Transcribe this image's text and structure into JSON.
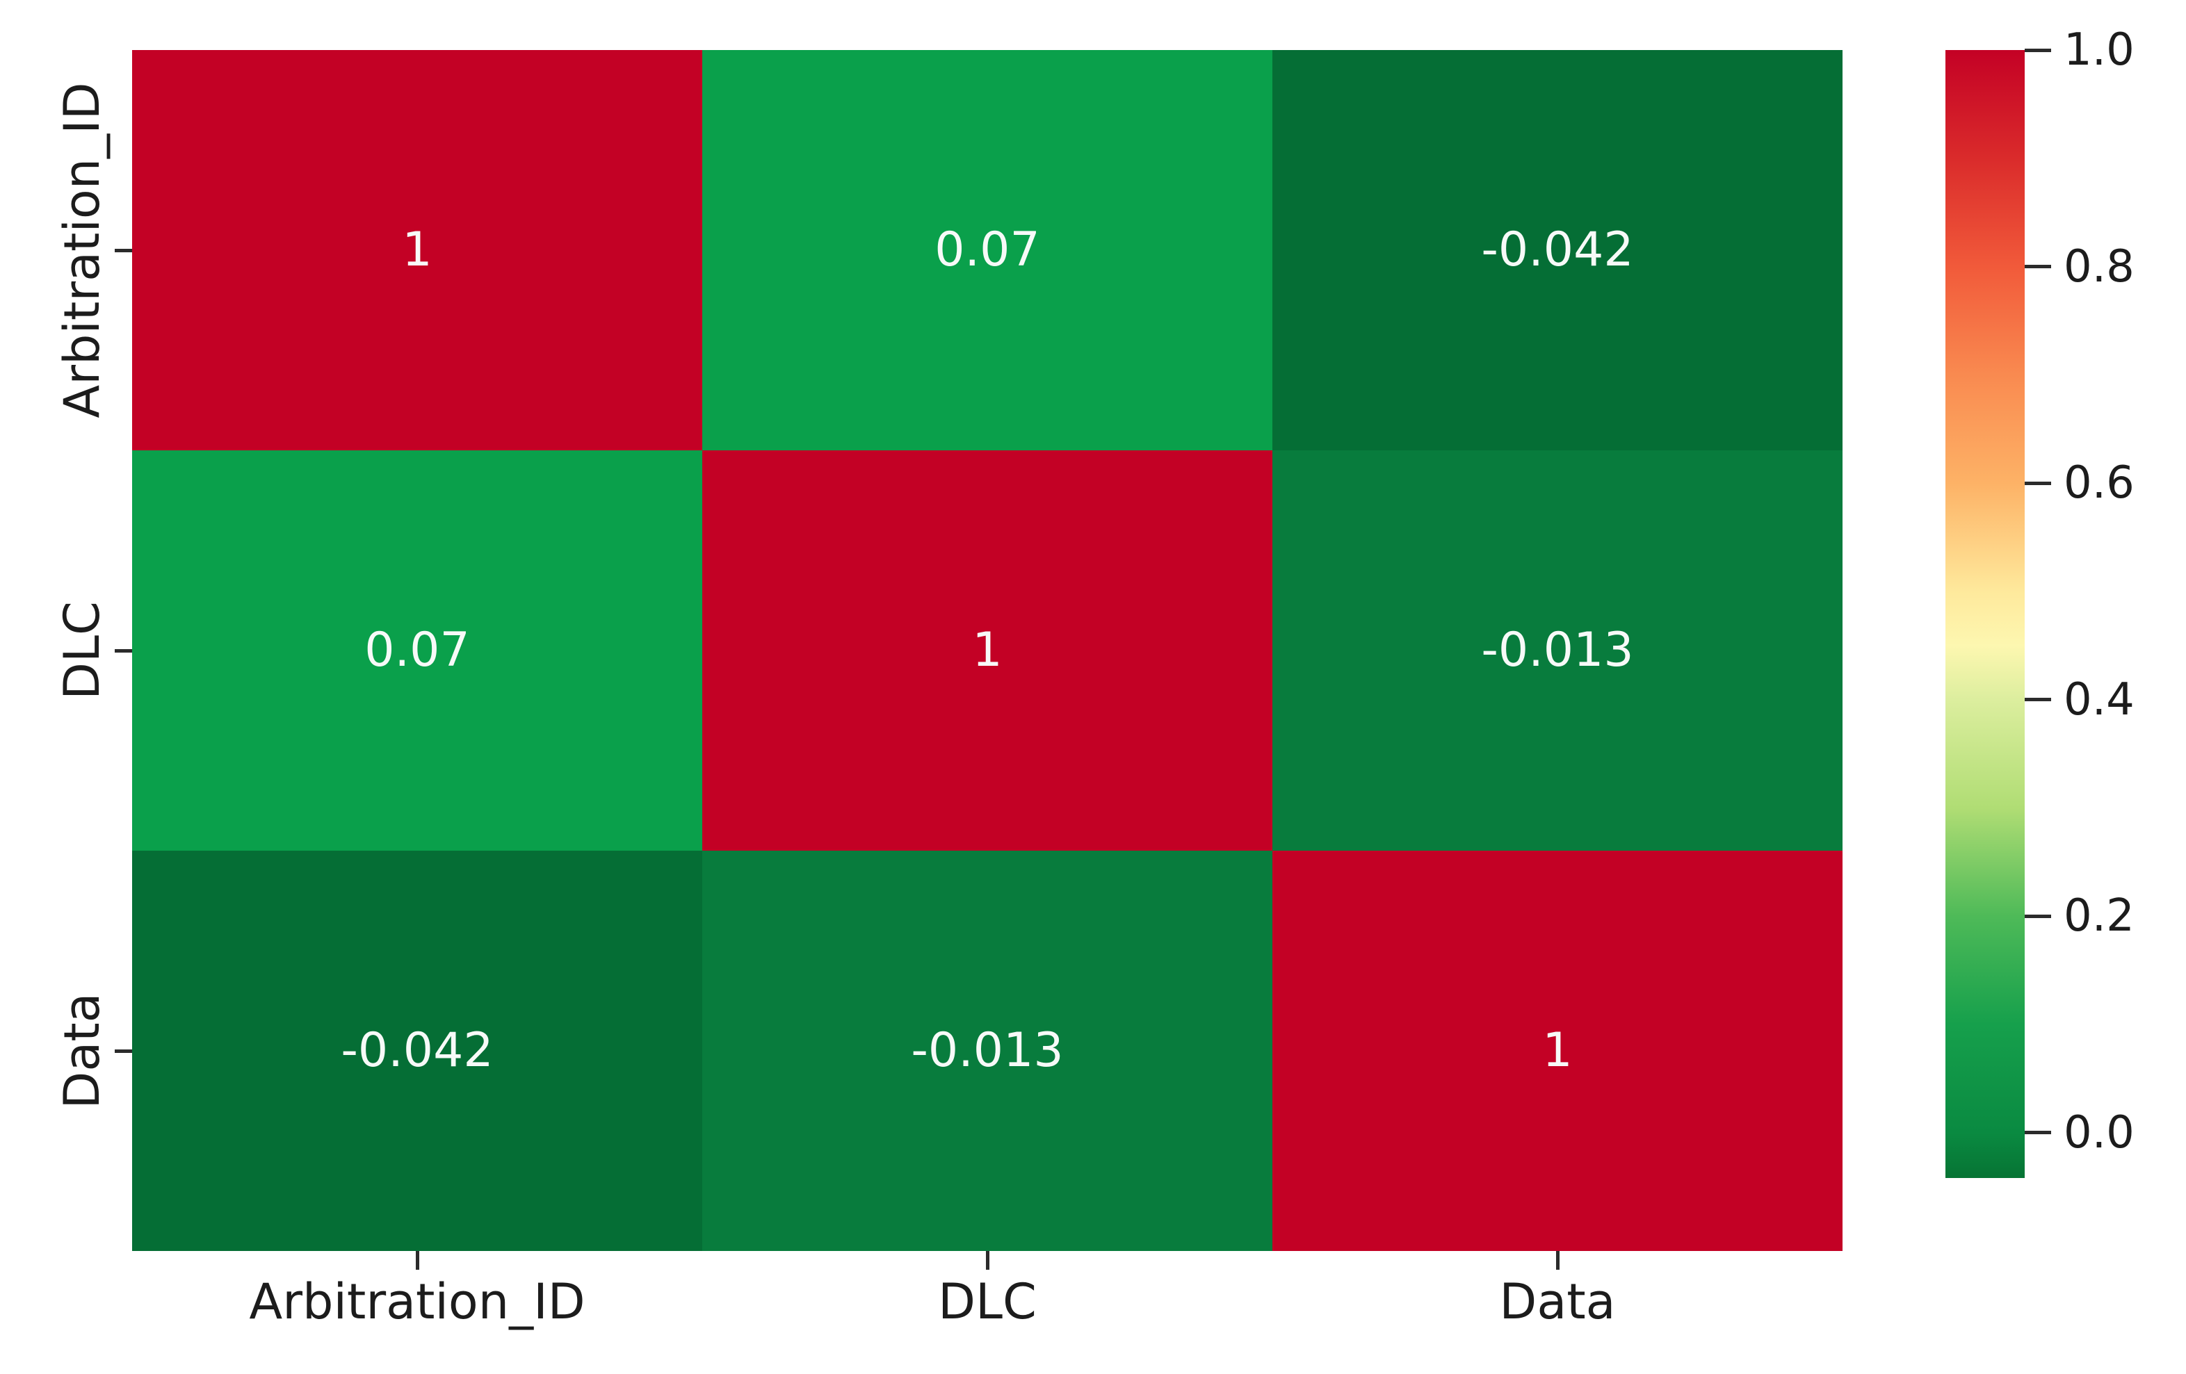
{
  "chart_data": {
    "type": "heatmap",
    "title": "",
    "xlabel": "",
    "ylabel": "",
    "categories": [
      "Arbitration_ID",
      "DLC",
      "Data"
    ],
    "matrix": [
      [
        1,
        0.07,
        -0.042
      ],
      [
        0.07,
        1,
        -0.013
      ],
      [
        -0.042,
        -0.013,
        1
      ]
    ],
    "cell_labels": [
      [
        "1",
        "0.07",
        "-0.042"
      ],
      [
        "0.07",
        "1",
        "-0.013"
      ],
      [
        "-0.042",
        "-0.013",
        "1"
      ]
    ],
    "cell_colors": [
      [
        "#c30125",
        "#0aa04b",
        "#056e35"
      ],
      [
        "#0aa04b",
        "#c30125",
        "#087c3d"
      ],
      [
        "#056e35",
        "#087c3d",
        "#c30125"
      ]
    ],
    "vmin": -0.042,
    "vmax": 1.0,
    "colormap": "RdYlGn_r",
    "legend_position": "right-colorbar",
    "grid": false,
    "colorbar_ticks": [
      "1.0",
      "0.8",
      "0.6",
      "0.4",
      "0.2",
      "0.0"
    ],
    "colorbar_gradient": [
      {
        "pos": 0.0,
        "color": "#c40125"
      },
      {
        "pos": 0.096,
        "color": "#da2b2b"
      },
      {
        "pos": 0.192,
        "color": "#f15a3a"
      },
      {
        "pos": 0.288,
        "color": "#f98a50"
      },
      {
        "pos": 0.384,
        "color": "#fdb266"
      },
      {
        "pos": 0.48,
        "color": "#fee99c"
      },
      {
        "pos": 0.528,
        "color": "#fdf7b0"
      },
      {
        "pos": 0.576,
        "color": "#dcee9e"
      },
      {
        "pos": 0.672,
        "color": "#b0dd74"
      },
      {
        "pos": 0.768,
        "color": "#4eba58"
      },
      {
        "pos": 0.864,
        "color": "#16a04c"
      },
      {
        "pos": 0.96,
        "color": "#0a8a41"
      },
      {
        "pos": 1.0,
        "color": "#067434"
      }
    ]
  },
  "colors": {
    "background": "#ffffff",
    "axis_text": "#1c1c1c",
    "tick_mark": "#2b2b2b",
    "annotation_text": "#f7faf8"
  }
}
